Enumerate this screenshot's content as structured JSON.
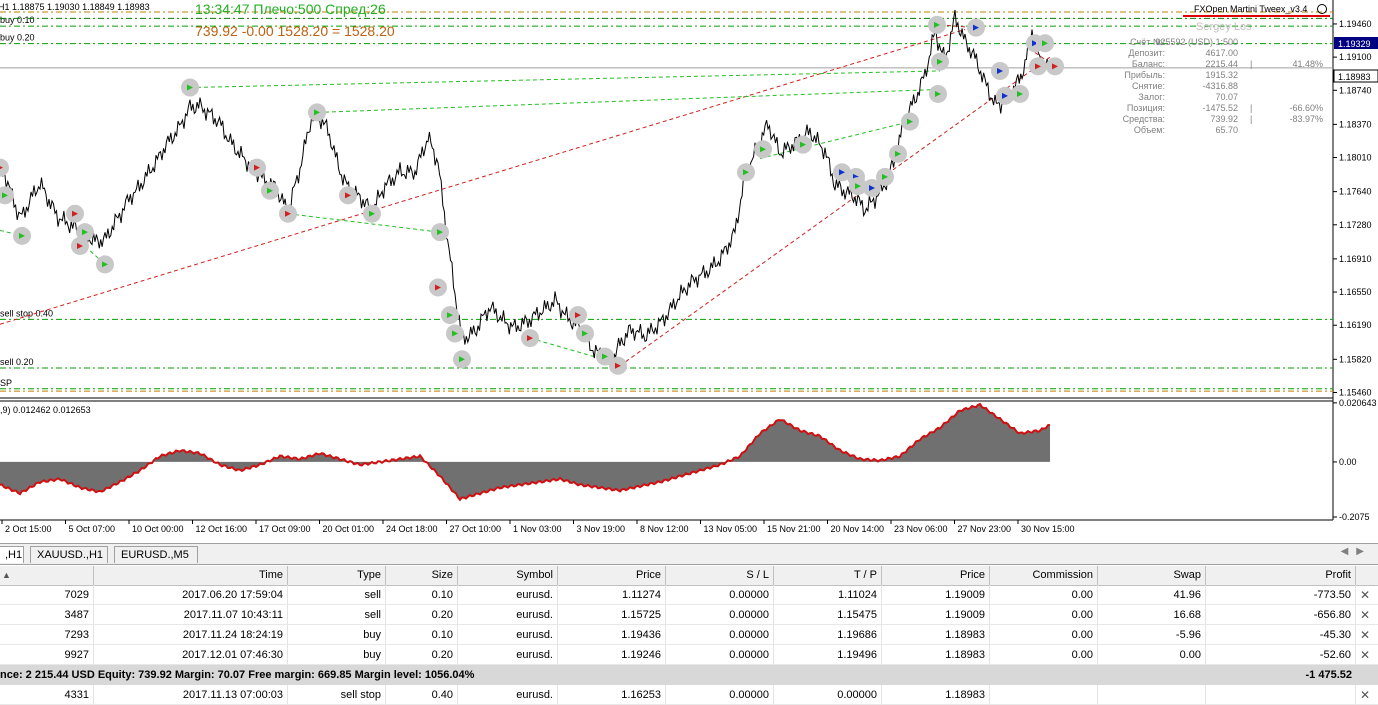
{
  "chart": {
    "symbol_info": "H1  1.18875 1.19030 1.18849 1.18983",
    "clock_line": "13:34:47 Плечо:500 Спред:26",
    "equity_line": "739.92   -0.00  1528.20 = 1528.20",
    "ea_name": "FXOpen Martini Tweex_v3.4",
    "user_name": "Sergey Los",
    "info_panel": [
      {
        "label": "Счёт №:",
        "value": "925592 (USD) 1:500",
        "extra": ""
      },
      {
        "label": "Депозит:",
        "value": "4617.00",
        "extra": ""
      },
      {
        "label": "Баланс:",
        "value": "2215.44",
        "extra": "41.48%"
      },
      {
        "label": "Прибыль:",
        "value": "1915.32",
        "extra": ""
      },
      {
        "label": "Снятие:",
        "value": "-4316.88",
        "extra": ""
      },
      {
        "label": "Залог:",
        "value": "70.07",
        "extra": ""
      },
      {
        "label": "Позиция:",
        "value": "-1475.52",
        "extra": "-66.60%"
      },
      {
        "label": "Средства:",
        "value": "739.92",
        "extra": "-83.97%"
      },
      {
        "label": "Объем:",
        "value": "65.70",
        "extra": ""
      }
    ],
    "order_lines": [
      {
        "label": "buy 0.10",
        "price": 1.19436,
        "color": "#00a000"
      },
      {
        "label": "buy 0.20",
        "price": 1.19246,
        "color": "#00a000"
      },
      {
        "label": "sell stop 0.40",
        "price": 1.16253,
        "color": "#00a000"
      },
      {
        "label": "sell 0.20",
        "price": 1.15725,
        "color": "#00a000"
      },
      {
        "label": "",
        "price": 1.1959,
        "color": "#c08000"
      },
      {
        "label": "",
        "price": 1.1952,
        "color": "#008000"
      },
      {
        "label": "",
        "price": 1.15475,
        "color": "#c08000"
      },
      {
        "label": "SP",
        "price": 1.155,
        "color": "#00a000"
      }
    ],
    "bid_price": "1.18983",
    "ask_price": "1.19329",
    "price_axis": [
      "1.19460",
      "1.19100",
      "1.18740",
      "1.18370",
      "1.18010",
      "1.17640",
      "1.17280",
      "1.16910",
      "1.16550",
      "1.16190",
      "1.15820",
      "1.15460"
    ],
    "price_range": [
      1.154,
      1.1972
    ],
    "indicator_label": ",9) 0.012462 0.012653",
    "indicator_axis": [
      "0.020643",
      "0.00",
      "-0.2075"
    ],
    "time_axis": [
      "2 Oct 15:00",
      "5 Oct 07:00",
      "10 Oct 00:00",
      "12 Oct 16:00",
      "17 Oct 09:00",
      "20 Oct 01:00",
      "24 Oct 18:00",
      "27 Oct 10:00",
      "1 Nov 03:00",
      "3 Nov 19:00",
      "8 Nov 12:00",
      "13 Nov 05:00",
      "15 Nov 21:00",
      "20 Nov 14:00",
      "23 Nov 06:00",
      "27 Nov 23:00",
      "30 Nov 15:00"
    ],
    "colors": {
      "price_line": "#000000",
      "histogram": "#707070",
      "signal_line": "#d01010",
      "grid": "#d0d0d0",
      "bid_bg": "#ffffff",
      "ask_bg": "#000080"
    }
  },
  "chart_data": {
    "type": "line",
    "series": [
      {
        "name": "",
        "x": [
          0,
          14,
          22,
          40,
          58,
          80,
          95,
          105,
          118,
          135,
          150,
          165,
          178,
          190,
          200,
          215,
          232,
          250,
          262,
          275,
          288,
          300,
          310,
          318,
          328,
          340,
          350,
          360,
          372,
          385,
          400,
          415,
          428,
          438,
          446,
          455,
          462,
          475,
          490,
          505,
          515,
          528,
          540,
          555,
          568,
          580,
          590,
          600,
          610,
          620,
          630,
          645,
          660,
          675,
          690,
          705,
          720,
          735,
          745,
          755,
          768,
          780,
          795,
          810,
          825,
          835,
          845,
          855,
          865,
          875,
          885,
          895,
          905,
          915,
          925,
          935,
          945,
          955,
          965,
          975,
          985,
          995,
          1005,
          1015,
          1025,
          1032,
          1040,
          1050
        ],
        "y": [
          1.179,
          1.1755,
          1.1735,
          1.177,
          1.174,
          1.1725,
          1.171,
          1.1715,
          1.174,
          1.176,
          1.179,
          1.1815,
          1.1835,
          1.1855,
          1.186,
          1.184,
          1.182,
          1.179,
          1.1775,
          1.1765,
          1.174,
          1.1785,
          1.1835,
          1.185,
          1.183,
          1.179,
          1.1765,
          1.1755,
          1.1745,
          1.177,
          1.179,
          1.1785,
          1.1825,
          1.18,
          1.172,
          1.165,
          1.16,
          1.161,
          1.1635,
          1.1625,
          1.1615,
          1.162,
          1.1635,
          1.165,
          1.163,
          1.162,
          1.16,
          1.159,
          1.1575,
          1.1595,
          1.161,
          1.1605,
          1.1625,
          1.1645,
          1.166,
          1.1675,
          1.1695,
          1.172,
          1.1785,
          1.181,
          1.184,
          1.181,
          1.1815,
          1.1825,
          1.181,
          1.177,
          1.176,
          1.1755,
          1.1745,
          1.176,
          1.1775,
          1.18,
          1.184,
          1.186,
          1.189,
          1.194,
          1.191,
          1.1955,
          1.1925,
          1.1905,
          1.188,
          1.186,
          1.1865,
          1.188,
          1.19,
          1.1935,
          1.191,
          1.1898
        ]
      }
    ],
    "indicator": {
      "name": "",
      "x": [
        0,
        20,
        40,
        60,
        80,
        100,
        120,
        140,
        160,
        180,
        200,
        220,
        240,
        260,
        280,
        300,
        320,
        340,
        360,
        380,
        400,
        420,
        440,
        460,
        480,
        500,
        520,
        540,
        560,
        580,
        600,
        620,
        640,
        660,
        680,
        700,
        720,
        740,
        760,
        780,
        800,
        820,
        840,
        860,
        880,
        900,
        920,
        940,
        960,
        980,
        1000,
        1020,
        1040,
        1050
      ],
      "y": [
        -0.008,
        -0.011,
        -0.007,
        -0.006,
        -0.009,
        -0.0105,
        -0.007,
        -0.003,
        0.002,
        0.004,
        0.003,
        -0.001,
        -0.003,
        -0.001,
        0.002,
        0.001,
        0.003,
        0.001,
        -0.001,
        0.0,
        0.001,
        0.002,
        -0.005,
        -0.013,
        -0.011,
        -0.009,
        -0.008,
        -0.007,
        -0.006,
        -0.008,
        -0.009,
        -0.01,
        -0.0085,
        -0.007,
        -0.005,
        -0.003,
        -0.001,
        0.002,
        0.01,
        0.015,
        0.011,
        0.009,
        0.004,
        0.001,
        0.0005,
        0.002,
        0.008,
        0.012,
        0.018,
        0.02,
        0.015,
        0.01,
        0.011,
        0.013
      ]
    },
    "ylim": [
      1.154,
      1.1972
    ],
    "indicator_ylim": [
      -0.02,
      0.021
    ]
  },
  "tabs": [
    {
      "label": ",H1",
      "active": true
    },
    {
      "label": "XAUUSD.,H1",
      "active": false
    },
    {
      "label": "EURUSD.,M5",
      "active": false
    }
  ],
  "table": {
    "headers": [
      "",
      "Time",
      "Type",
      "Size",
      "Symbol",
      "Price",
      "S / L",
      "T / P",
      "Price",
      "Commission",
      "Swap",
      "Profit"
    ],
    "rows": [
      [
        "7029",
        "2017.06.20 17:59:04",
        "sell",
        "0.10",
        "eurusd.",
        "1.11274",
        "0.00000",
        "1.11024",
        "1.19009",
        "0.00",
        "41.96",
        "-773.50"
      ],
      [
        "3487",
        "2017.11.07 10:43:11",
        "sell",
        "0.20",
        "eurusd.",
        "1.15725",
        "0.00000",
        "1.15475",
        "1.19009",
        "0.00",
        "16.68",
        "-656.80"
      ],
      [
        "7293",
        "2017.11.24 18:24:19",
        "buy",
        "0.10",
        "eurusd.",
        "1.19436",
        "0.00000",
        "1.19686",
        "1.18983",
        "0.00",
        "-5.96",
        "-45.30"
      ],
      [
        "9927",
        "2017.12.01 07:46:30",
        "buy",
        "0.20",
        "eurusd.",
        "1.19246",
        "0.00000",
        "1.19496",
        "1.18983",
        "0.00",
        "0.00",
        "-52.60"
      ]
    ],
    "summary": "nce: 2 215.44 USD  Equity: 739.92  Margin: 70.07  Free margin: 669.85  Margin level: 1056.04%",
    "summary_profit": "-1 475.52",
    "pending": [
      "4331",
      "2017.11.13 07:00:03",
      "sell stop",
      "0.40",
      "eurusd.",
      "1.16253",
      "0.00000",
      "0.00000",
      "1.18983",
      "",
      "",
      ""
    ]
  }
}
